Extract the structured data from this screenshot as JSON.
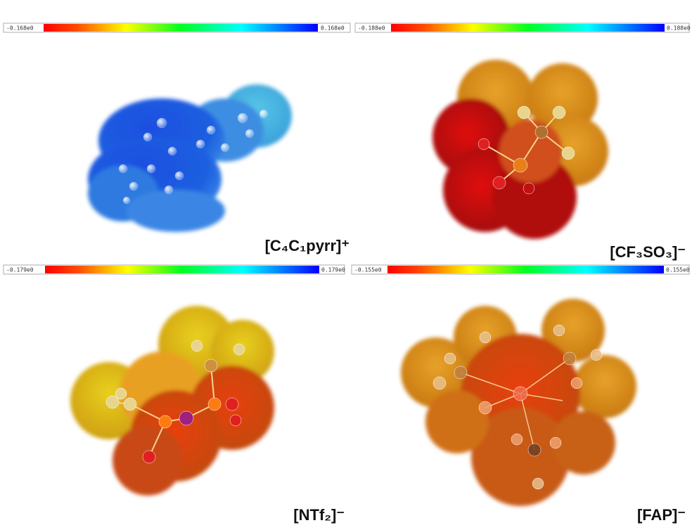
{
  "panels": [
    {
      "scale_min": "-0.168e0",
      "scale_max": "0.168e0",
      "label": "[C₄C₁pyrr]⁺"
    },
    {
      "scale_min": "-0.188e0",
      "scale_max": "0.188e0",
      "label": "[CF₃SO₃]⁻"
    },
    {
      "scale_min": "-0.179e0",
      "scale_max": "0.179e0",
      "label": "[NTf₂]⁻"
    },
    {
      "scale_min": "-0.155e0",
      "scale_max": "0.155e0",
      "label": "[FAP]⁻"
    }
  ]
}
